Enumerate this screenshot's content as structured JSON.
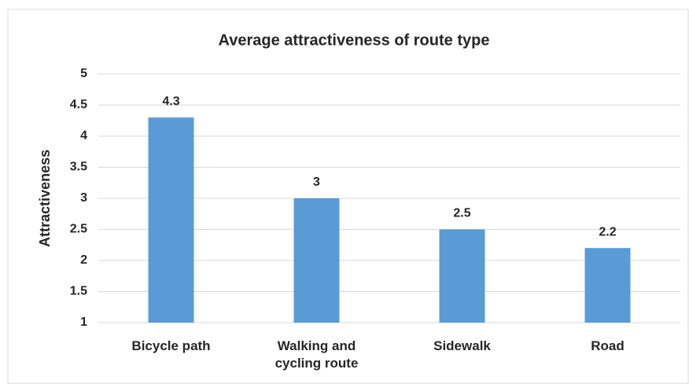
{
  "chart_data": {
    "type": "bar",
    "title": "Average attractiveness of route type",
    "y_label": "Attractiveness",
    "categories": [
      "Bicycle path",
      "Walking and cycling route",
      "Sidewalk",
      "Road"
    ],
    "values": [
      4.3,
      3,
      2.5,
      2.2
    ],
    "color": "#5b9bd5",
    "ylim": [
      1,
      5
    ],
    "yticks": [
      1,
      1.5,
      2,
      2.5,
      3,
      3.5,
      4,
      4.5,
      5
    ],
    "grid": true
  }
}
